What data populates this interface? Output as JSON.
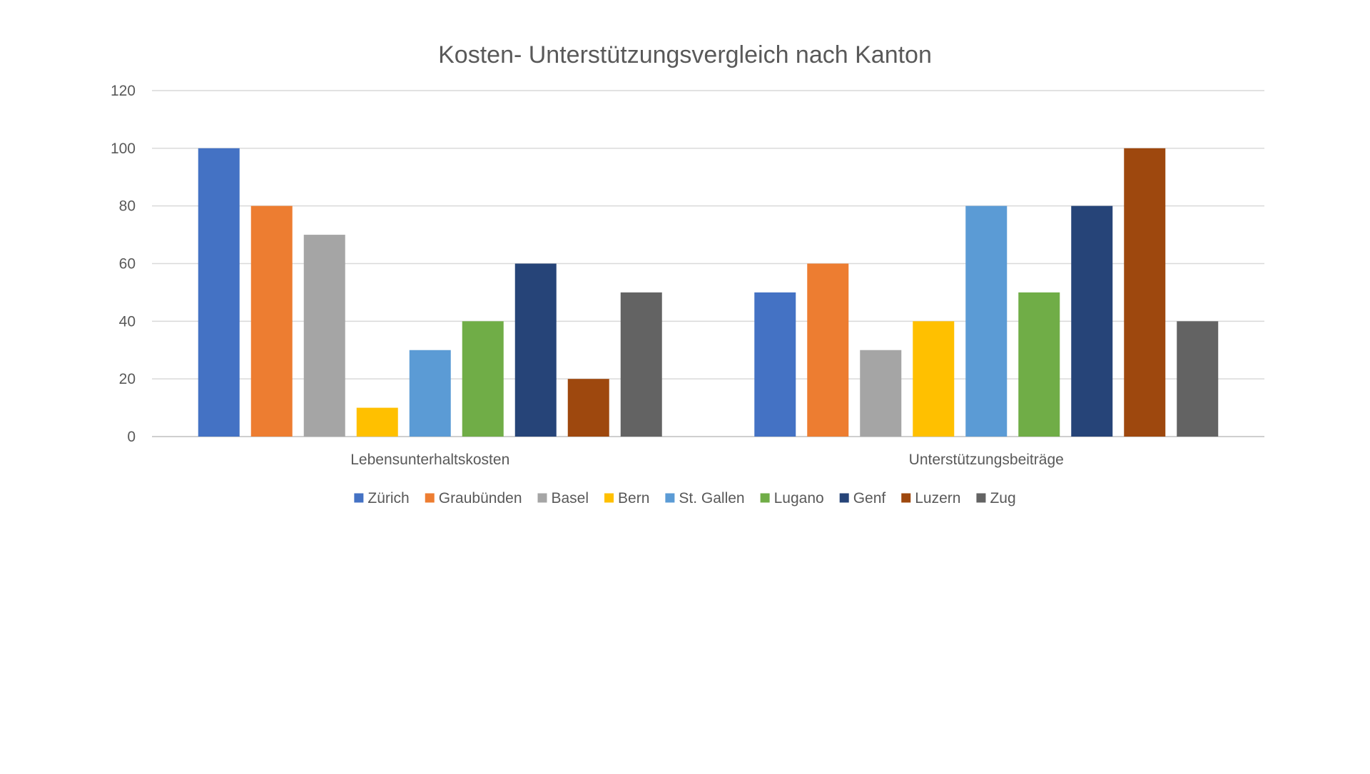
{
  "chart_data": {
    "type": "bar",
    "title": "Kosten- Unterstützungsvergleich nach Kanton",
    "xlabel": "",
    "ylabel": "",
    "categories": [
      "Lebensunterhaltskosten",
      "Unterstützungsbeiträge"
    ],
    "ylim": [
      0,
      120
    ],
    "yticks": [
      "0",
      "20",
      "40",
      "60",
      "80",
      "100",
      "120"
    ],
    "grid": true,
    "legend_position": "bottom",
    "series": [
      {
        "name": "Zürich",
        "color": "#4472C4",
        "values": [
          100,
          50
        ]
      },
      {
        "name": "Graubünden",
        "color": "#ED7D31",
        "values": [
          80,
          60
        ]
      },
      {
        "name": "Basel",
        "color": "#A5A5A5",
        "values": [
          70,
          30
        ]
      },
      {
        "name": "Bern",
        "color": "#FFC000",
        "values": [
          10,
          40
        ]
      },
      {
        "name": "St. Gallen",
        "color": "#5B9BD5",
        "values": [
          30,
          80
        ]
      },
      {
        "name": "Lugano",
        "color": "#70AD47",
        "values": [
          40,
          50
        ]
      },
      {
        "name": "Genf",
        "color": "#264478",
        "values": [
          60,
          80
        ]
      },
      {
        "name": "Luzern",
        "color": "#9E480E",
        "values": [
          20,
          100
        ]
      },
      {
        "name": "Zug",
        "color": "#636363",
        "values": [
          50,
          40
        ]
      }
    ]
  }
}
